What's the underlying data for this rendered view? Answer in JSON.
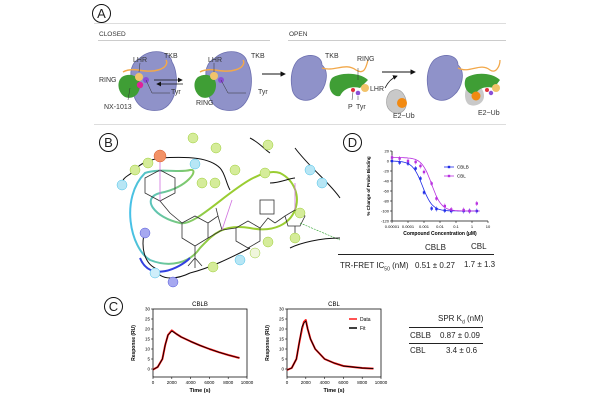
{
  "panels": {
    "a": {
      "letter": "A",
      "closed_label": "CLOSED",
      "open_label": "OPEN",
      "labels": {
        "lhr": "LHR",
        "tkb": "TKB",
        "ring": "RING",
        "tyr": "Tyr",
        "compound": "NX-1013",
        "p": "P",
        "e2ub": "E2~Ub"
      },
      "colors": {
        "tkb": "#8f92c9",
        "ring": "#3f9e35",
        "lhr": "#f2a84a",
        "tyr": "#8a4fd6",
        "compound": "#e0219b",
        "p": "#e0303a",
        "e2": "#c9c9c9",
        "ub": "#f28a12"
      }
    },
    "b": {
      "letter": "B"
    },
    "c": {
      "letter": "C",
      "spr_table": {
        "header": "SPR K",
        "header_sub": "d",
        "header_unit": " (nM)",
        "rows": [
          {
            "name": "CBLB",
            "value": "0.87 ± 0.09"
          },
          {
            "name": "CBL",
            "value": "3.4 ± 0.6"
          }
        ]
      }
    },
    "d": {
      "letter": "D",
      "ic50_table": {
        "col1": "CBLB",
        "col2": "CBL",
        "row_label": "TR-FRET IC",
        "row_label_sub": "50",
        "row_label_unit": " (nM)",
        "val1": "0.51 ± 0.27",
        "val2": "1.7 ± 1.3"
      }
    }
  },
  "chart_data": [
    {
      "id": "dose-response",
      "type": "scatter",
      "xlabel": "Compound Concentration (µM)",
      "ylabel": "% Change of Probe Binding",
      "xscale": "log",
      "xlim": [
        1e-05,
        10
      ],
      "ylim": [
        -120,
        20
      ],
      "xticks": [
        "0.00001",
        "0.0001",
        "0.001",
        "0.01",
        "0.1",
        "1",
        "10"
      ],
      "yticks": [
        20,
        0,
        -20,
        -40,
        -60,
        -80,
        -100,
        -120
      ],
      "legend": "right",
      "series": [
        {
          "name": "CBLB",
          "color": "#1f2be8",
          "x": [
            1e-05,
            3e-05,
            0.0001,
            0.0003,
            0.0006,
            0.001,
            0.003,
            0.006,
            0.02,
            0.05,
            0.3,
            0.7,
            2
          ],
          "y": [
            0,
            -3,
            -5,
            -15,
            -35,
            -63,
            -95,
            -96,
            -99,
            -100,
            -100,
            -100,
            -100
          ]
        },
        {
          "name": "CBL",
          "color": "#b82fe0",
          "x": [
            1e-05,
            3e-05,
            0.0001,
            0.0003,
            0.0006,
            0.001,
            0.003,
            0.006,
            0.02,
            0.05,
            0.3,
            0.7,
            2
          ],
          "y": [
            7,
            5,
            0,
            -2,
            -10,
            -22,
            -45,
            -75,
            -90,
            -97,
            -98,
            -100,
            -85
          ]
        }
      ]
    },
    {
      "id": "spr-cblb",
      "type": "line",
      "title": "CBLB",
      "xlabel": "Time (s)",
      "ylabel": "Response (RU)",
      "xlim": [
        0,
        10000
      ],
      "ylim": [
        -4,
        30
      ],
      "xticks": [
        0,
        2000,
        4000,
        6000,
        8000,
        10000
      ],
      "yticks": [
        0,
        5,
        10,
        15,
        20,
        25,
        30
      ],
      "series": [
        {
          "name": "Data",
          "color": "#ff1a1a",
          "x": [
            0,
            500,
            1000,
            1300,
            1600,
            2000,
            2500,
            3000,
            4000,
            5000,
            6000,
            7000,
            8000,
            9200
          ],
          "y": [
            -0.3,
            1,
            5,
            12,
            17,
            19.3,
            17.5,
            16,
            13.8,
            11.8,
            10,
            8.4,
            7,
            5.5
          ]
        },
        {
          "name": "Fit",
          "color": "#000000",
          "x": [
            0,
            500,
            1000,
            1300,
            1600,
            2000,
            2500,
            3000,
            4000,
            5000,
            6000,
            7000,
            8000,
            9200
          ],
          "y": [
            -0.3,
            1,
            5,
            12,
            17,
            19,
            17.5,
            16,
            13.8,
            11.8,
            10,
            8.4,
            7,
            5.5
          ]
        }
      ]
    },
    {
      "id": "spr-cbl",
      "type": "line",
      "title": "CBL",
      "xlabel": "Time (s)",
      "ylabel": "Response (RU)",
      "xlim": [
        0,
        10000
      ],
      "ylim": [
        -4,
        30
      ],
      "xticks": [
        0,
        2000,
        4000,
        6000,
        8000,
        10000
      ],
      "yticks": [
        0,
        5,
        10,
        15,
        20,
        25,
        30
      ],
      "legend": "top-right",
      "series": [
        {
          "name": "Data",
          "color": "#ff1a1a",
          "x": [
            0,
            500,
            1000,
            1300,
            1600,
            1800,
            2000,
            2200,
            2500,
            3000,
            4000,
            5000,
            6000,
            7000,
            8000,
            9200
          ],
          "y": [
            -0.5,
            0.5,
            5,
            13,
            20,
            23.5,
            24.5,
            20,
            15,
            10,
            5,
            3,
            1.5,
            1,
            0.5,
            0.2
          ]
        },
        {
          "name": "Fit",
          "color": "#000000",
          "x": [
            0,
            500,
            1000,
            1300,
            1600,
            1800,
            2000,
            2200,
            2500,
            3000,
            4000,
            5000,
            6000,
            7000,
            8000,
            9200
          ],
          "y": [
            -0.5,
            0.5,
            5,
            13,
            21,
            23,
            24,
            20,
            15,
            10,
            5,
            3,
            1.5,
            1,
            0.5,
            0.2
          ]
        }
      ]
    }
  ]
}
